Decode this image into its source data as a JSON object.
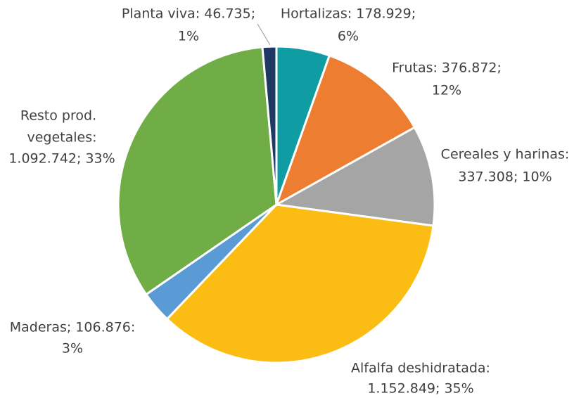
{
  "chart_data": {
    "type": "pie",
    "values": [
      178929,
      376872,
      337308,
      1152849,
      106876,
      1092742,
      46735
    ],
    "value_labels": [
      [
        "Hortalizas: 178.929;",
        "6%"
      ],
      [
        "Frutas: 376.872;",
        "12%"
      ],
      [
        "Cereales y harinas:",
        "337.308; 10%"
      ],
      [
        "Alfalfa deshidratada:",
        "1.152.849; 35%"
      ],
      [
        "Maderas; 106.876:",
        "3%"
      ],
      [
        "Resto prod.",
        "vegetales:",
        "1.092.742; 33%"
      ],
      [
        "Planta viva: 46.735;",
        "1%"
      ]
    ],
    "colors": [
      "#109ca3",
      "#ed7d31",
      "#a5a5a5",
      "#fbbc13",
      "#5b9bd5",
      "#70ad47",
      "#203864"
    ]
  }
}
